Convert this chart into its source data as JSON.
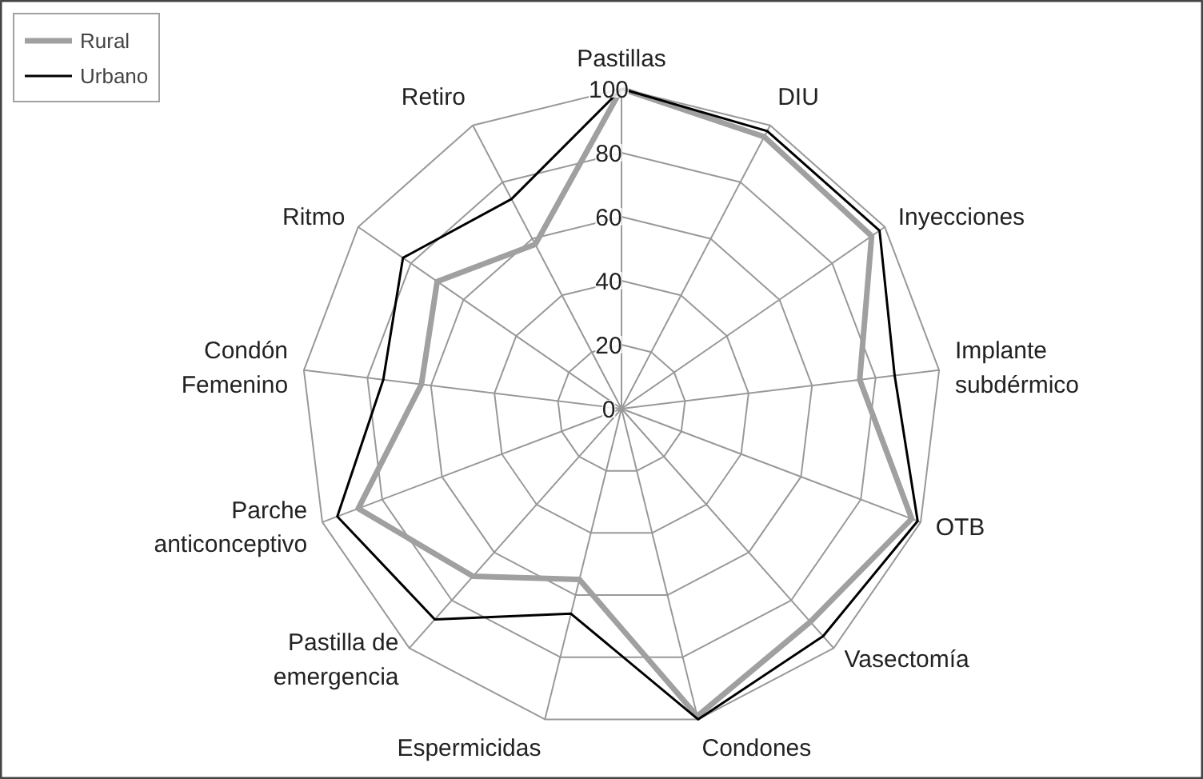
{
  "chart_data": {
    "type": "radar",
    "categories": [
      "Pastillas",
      "DIU",
      "Inyecciones",
      "Implante\nsubdérmico",
      "OTB",
      "Vasectomía",
      "Condones",
      "Espermicidas",
      "Pastilla de\nemergencia",
      "Parche\nanticonceptivo",
      "Condón\nFemenino",
      "Ritmo",
      "Retiro"
    ],
    "series": [
      {
        "name": "Rural",
        "color": "#a0a0a0",
        "values": [
          100,
          96,
          95,
          75,
          97,
          89,
          99,
          55,
          70,
          88,
          63,
          70,
          58
        ]
      },
      {
        "name": "Urbano",
        "color": "#000000",
        "values": [
          100,
          98,
          98,
          86,
          99,
          95,
          100,
          66,
          88,
          95,
          75,
          83,
          74
        ]
      }
    ],
    "ylim": [
      0,
      100
    ],
    "yticks": [
      0,
      20,
      40,
      60,
      80,
      100
    ],
    "grid": true,
    "legend": "top left",
    "marker": "none",
    "line_style": "solid"
  }
}
